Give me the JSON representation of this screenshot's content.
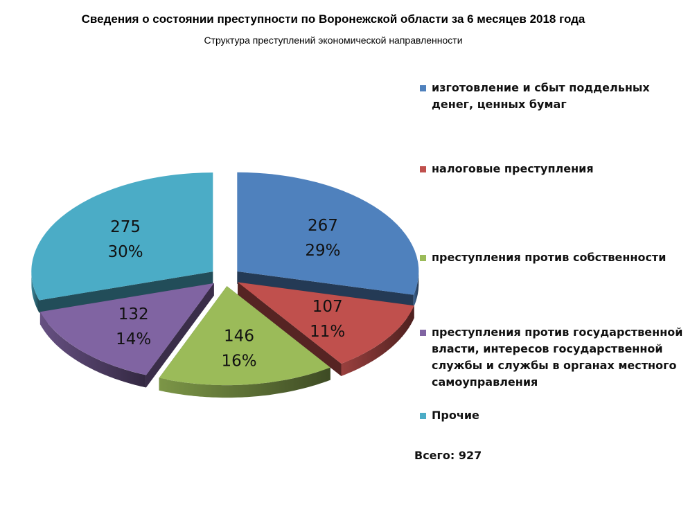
{
  "chart_data": {
    "type": "pie",
    "title": "Сведения о состоянии преступности по Воронежской области за 6 месяцев 2018 года",
    "subtitle": "Структура преступлений экономической направленности",
    "style": "3d-exploded",
    "legend_position": "right",
    "slices": [
      {
        "name": "изготовление и сбыт поддельных денег, ценных бумаг",
        "value": 267,
        "percent": "29%",
        "color": "#4F81BD"
      },
      {
        "name": "налоговые преступления",
        "value": 107,
        "percent": "11%",
        "color": "#C0504D"
      },
      {
        "name": "преступления против собственности",
        "value": 146,
        "percent": "16%",
        "color": "#9BBB59"
      },
      {
        "name": "преступления против государственной власти, интересов государственной службы и службы в органах местного самоуправления",
        "value": 132,
        "percent": "14%",
        "color": "#8064A2"
      },
      {
        "name": "Прочие",
        "value": 275,
        "percent": "30%",
        "color": "#4BACC6"
      }
    ],
    "total_label": "Всего: 927"
  },
  "legend": {
    "items": [
      {
        "lines": [
          "изготовление и сбыт поддельных",
          "денег, ценных бумаг"
        ]
      },
      {
        "lines": [
          "налоговые преступления"
        ]
      },
      {
        "lines": [
          "преступления против собственности"
        ]
      },
      {
        "lines": [
          "преступления против государственной",
          "власти, интересов государственной",
          "службы и службы в органах местного",
          "самоуправления"
        ]
      },
      {
        "lines": [
          "Прочие"
        ]
      }
    ]
  }
}
